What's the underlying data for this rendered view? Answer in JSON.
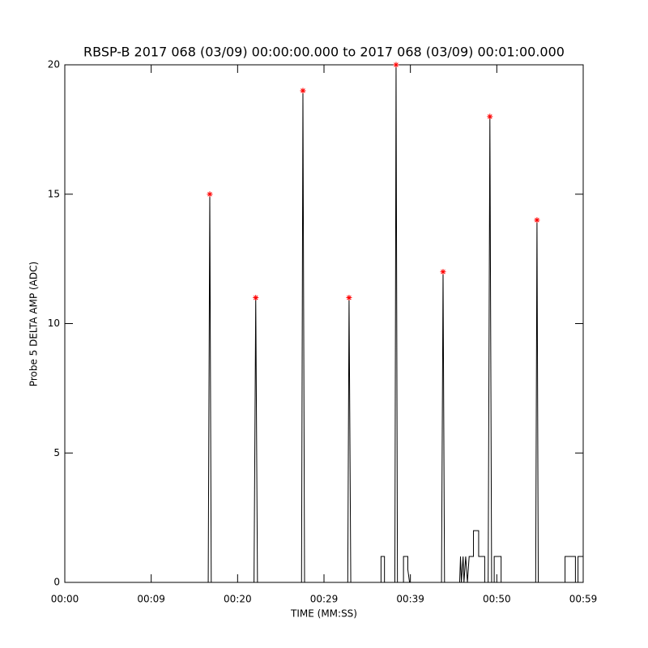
{
  "chart_data": {
    "type": "line",
    "title": "RBSP-B 2017 068 (03/09) 00:00:00.000 to 2017 068 (03/09) 00:01:00.000",
    "x_label": "TIME (MM:SS)",
    "y_label": "Probe 5 DELTA AMP (ADC)",
    "xlim": [
      0,
      60
    ],
    "ylim": [
      0,
      20
    ],
    "xticks": [
      {
        "value": 0,
        "label": "00:00"
      },
      {
        "value": 10,
        "label": "00:09"
      },
      {
        "value": 20,
        "label": "00:20"
      },
      {
        "value": 30,
        "label": "00:29"
      },
      {
        "value": 40,
        "label": "00:39"
      },
      {
        "value": 50,
        "label": "00:50"
      },
      {
        "value": 60,
        "label": "00:59"
      }
    ],
    "yticks": [
      0,
      5,
      10,
      15,
      20
    ],
    "series": [
      {
        "color": "#000000",
        "marker": "none",
        "x": [
          0,
          16.6,
          16.78,
          16.95,
          21.9,
          22.1,
          22.3,
          27.4,
          27.56,
          27.75,
          32.75,
          32.9,
          33.1,
          36.6,
          36.6,
          37.0,
          37.0,
          38.2,
          38.34,
          38.5,
          39.2,
          39.2,
          39.7,
          39.7,
          39.9,
          40.0,
          43.6,
          43.78,
          43.95,
          45.7,
          45.8,
          45.9,
          46.1,
          46.2,
          46.4,
          46.6,
          46.8,
          47.3,
          47.3,
          47.9,
          47.9,
          48.6,
          48.6,
          49.0,
          49.2,
          49.4,
          49.7,
          49.7,
          50.5,
          50.5,
          54.5,
          54.65,
          54.8,
          57.9,
          57.9,
          59.1,
          59.1,
          59.4,
          59.4,
          60
        ],
        "values": [
          0,
          0,
          15,
          0,
          0,
          11,
          0,
          0,
          19,
          0,
          0,
          11,
          0,
          0,
          1,
          1,
          0,
          0,
          20,
          0,
          0,
          1,
          1,
          0.5,
          0,
          0,
          0,
          12,
          0,
          0,
          1,
          0,
          1,
          0,
          1,
          0,
          1,
          1,
          2,
          2,
          1,
          1,
          0,
          0,
          18,
          0,
          0,
          1,
          1,
          0,
          0,
          14,
          0,
          0,
          1,
          1,
          0,
          0,
          1,
          1
        ]
      },
      {
        "color": "#ff0000",
        "marker": "star",
        "x": [
          16.78,
          22.1,
          27.56,
          32.9,
          38.34,
          43.78,
          49.2,
          54.65
        ],
        "values": [
          15,
          11,
          19,
          11,
          20,
          12,
          18,
          14
        ]
      }
    ]
  }
}
